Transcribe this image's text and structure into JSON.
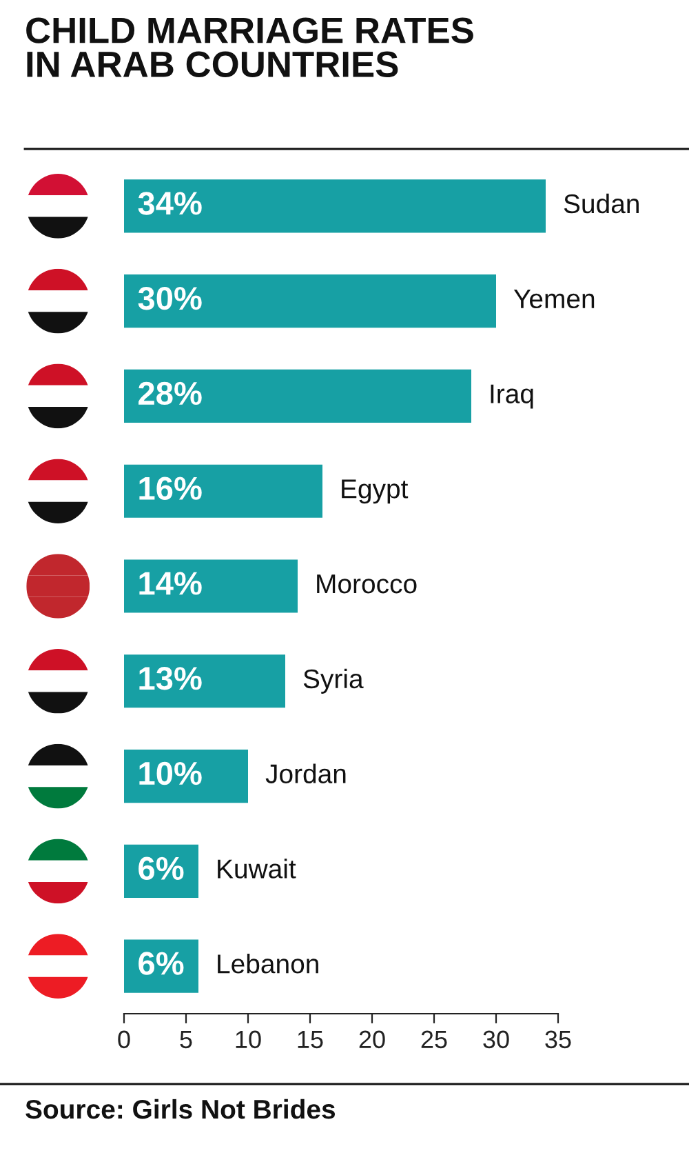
{
  "chart_data": {
    "type": "bar",
    "orientation": "horizontal",
    "title": "CHILD MARRIAGE RATES\nIN ARAB COUNTRIES",
    "categories": [
      "Sudan",
      "Yemen",
      "Iraq",
      "Egypt",
      "Morocco",
      "Syria",
      "Jordan",
      "Kuwait",
      "Lebanon"
    ],
    "values": [
      34,
      30,
      28,
      16,
      14,
      13,
      10,
      6,
      6
    ],
    "value_labels": [
      "34%",
      "30%",
      "28%",
      "16%",
      "14%",
      "13%",
      "10%",
      "6%",
      "6%"
    ],
    "color": "#17a0a4",
    "xlim": [
      0,
      35
    ],
    "xticks": [
      0,
      5,
      10,
      15,
      20,
      25,
      30,
      35
    ],
    "grid": false,
    "annotations": [
      "Source: Girls Not Brides"
    ]
  }
}
